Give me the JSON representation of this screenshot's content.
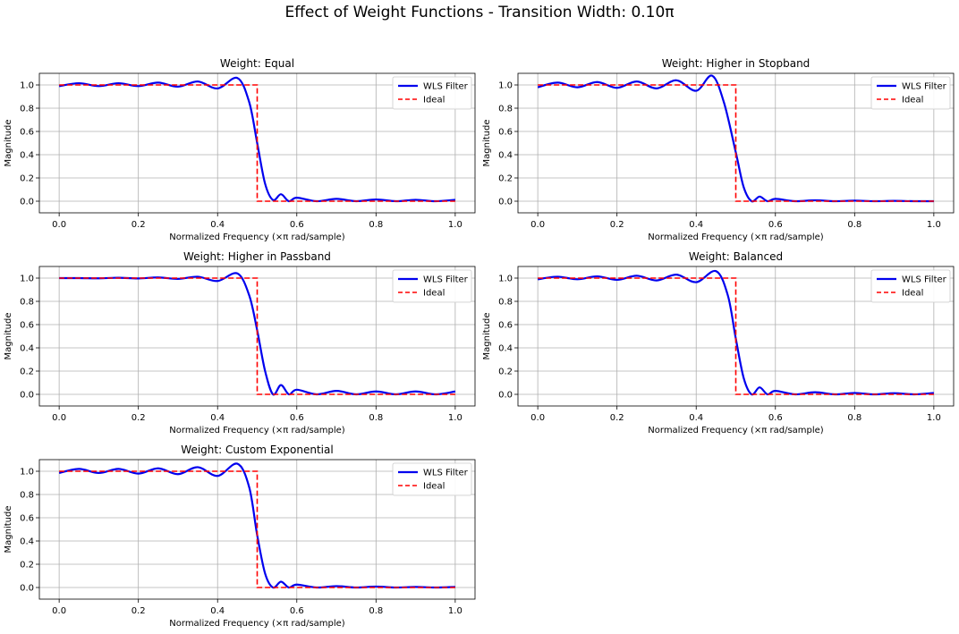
{
  "figure": {
    "suptitle": "Effect of Weight Functions - Transition Width: 0.10π"
  },
  "colors": {
    "wls": "#0000ee",
    "ideal": "#ff0000",
    "grid": "#b0b0b0"
  },
  "chart_data": [
    {
      "type": "line",
      "title": "Weight: Equal",
      "xlabel": "Normalized Frequency (×π rad/sample)",
      "ylabel": "Magnitude",
      "xlim": [
        -0.05,
        1.05
      ],
      "ylim": [
        -0.1,
        1.1
      ],
      "xticks": [
        0.0,
        0.2,
        0.4,
        0.6,
        0.8,
        1.0
      ],
      "yticks": [
        0.0,
        0.2,
        0.4,
        0.6,
        0.8,
        1.0
      ],
      "xtick_labels": [
        "0.0",
        "0.2",
        "0.4",
        "0.6",
        "0.8",
        "1.0"
      ],
      "ytick_labels": [
        "0.0",
        "0.2",
        "0.4",
        "0.6",
        "0.8",
        "1.0"
      ],
      "grid": true,
      "legend": "top-right",
      "series": [
        {
          "name": "WLS Filter",
          "style": "solid",
          "x": [
            0.0,
            0.05,
            0.1,
            0.15,
            0.2,
            0.25,
            0.3,
            0.35,
            0.4,
            0.45,
            0.48,
            0.5,
            0.52,
            0.54,
            0.56,
            0.58,
            0.6,
            0.65,
            0.7,
            0.75,
            0.8,
            0.85,
            0.9,
            0.95,
            1.0
          ],
          "y": [
            0.99,
            1.015,
            0.99,
            1.015,
            0.99,
            1.02,
            0.985,
            1.03,
            0.97,
            1.06,
            0.85,
            0.5,
            0.15,
            0.01,
            0.06,
            0.0,
            0.03,
            0.0,
            0.02,
            0.0,
            0.015,
            0.0,
            0.012,
            0.0,
            0.012
          ]
        },
        {
          "name": "Ideal",
          "style": "dashed",
          "x": [
            0.0,
            0.5,
            0.5,
            1.0
          ],
          "y": [
            1.0,
            1.0,
            0.0,
            0.0
          ]
        }
      ]
    },
    {
      "type": "line",
      "title": "Weight: Higher in Stopband",
      "xlabel": "Normalized Frequency (×π rad/sample)",
      "ylabel": "Magnitude",
      "xlim": [
        -0.05,
        1.05
      ],
      "ylim": [
        -0.1,
        1.1
      ],
      "xticks": [
        0.0,
        0.2,
        0.4,
        0.6,
        0.8,
        1.0
      ],
      "yticks": [
        0.0,
        0.2,
        0.4,
        0.6,
        0.8,
        1.0
      ],
      "xtick_labels": [
        "0.0",
        "0.2",
        "0.4",
        "0.6",
        "0.8",
        "1.0"
      ],
      "ytick_labels": [
        "0.0",
        "0.2",
        "0.4",
        "0.6",
        "0.8",
        "1.0"
      ],
      "grid": true,
      "legend": "top-right",
      "series": [
        {
          "name": "WLS Filter",
          "style": "solid",
          "x": [
            0.0,
            0.05,
            0.1,
            0.15,
            0.2,
            0.25,
            0.3,
            0.35,
            0.4,
            0.44,
            0.47,
            0.5,
            0.52,
            0.54,
            0.56,
            0.58,
            0.6,
            0.65,
            0.7,
            0.75,
            0.8,
            0.85,
            0.9,
            0.95,
            1.0
          ],
          "y": [
            0.98,
            1.02,
            0.98,
            1.025,
            0.975,
            1.03,
            0.97,
            1.04,
            0.95,
            1.08,
            0.85,
            0.42,
            0.12,
            0.0,
            0.04,
            0.0,
            0.02,
            0.0,
            0.008,
            0.0,
            0.005,
            0.0,
            0.003,
            0.0,
            0.0
          ]
        },
        {
          "name": "Ideal",
          "style": "dashed",
          "x": [
            0.0,
            0.5,
            0.5,
            1.0
          ],
          "y": [
            1.0,
            1.0,
            0.0,
            0.0
          ]
        }
      ]
    },
    {
      "type": "line",
      "title": "Weight: Higher in Passband",
      "xlabel": "Normalized Frequency (×π rad/sample)",
      "ylabel": "Magnitude",
      "xlim": [
        -0.05,
        1.05
      ],
      "ylim": [
        -0.1,
        1.1
      ],
      "xticks": [
        0.0,
        0.2,
        0.4,
        0.6,
        0.8,
        1.0
      ],
      "yticks": [
        0.0,
        0.2,
        0.4,
        0.6,
        0.8,
        1.0
      ],
      "xtick_labels": [
        "0.0",
        "0.2",
        "0.4",
        "0.6",
        "0.8",
        "1.0"
      ],
      "ytick_labels": [
        "0.0",
        "0.2",
        "0.4",
        "0.6",
        "0.8",
        "1.0"
      ],
      "grid": true,
      "legend": "top-right",
      "series": [
        {
          "name": "WLS Filter",
          "style": "solid",
          "x": [
            0.0,
            0.05,
            0.1,
            0.15,
            0.2,
            0.25,
            0.3,
            0.35,
            0.4,
            0.45,
            0.48,
            0.5,
            0.52,
            0.54,
            0.56,
            0.58,
            0.6,
            0.65,
            0.7,
            0.75,
            0.8,
            0.85,
            0.9,
            0.95,
            1.0
          ],
          "y": [
            1.0,
            1.0,
            0.998,
            1.003,
            0.997,
            1.006,
            0.993,
            1.012,
            0.975,
            1.04,
            0.85,
            0.55,
            0.2,
            0.0,
            0.08,
            0.0,
            0.04,
            0.0,
            0.03,
            0.0,
            0.025,
            0.0,
            0.025,
            0.0,
            0.025
          ]
        },
        {
          "name": "Ideal",
          "style": "dashed",
          "x": [
            0.0,
            0.5,
            0.5,
            1.0
          ],
          "y": [
            1.0,
            1.0,
            0.0,
            0.0
          ]
        }
      ]
    },
    {
      "type": "line",
      "title": "Weight: Balanced",
      "xlabel": "Normalized Frequency (×π rad/sample)",
      "ylabel": "Magnitude",
      "xlim": [
        -0.05,
        1.05
      ],
      "ylim": [
        -0.1,
        1.1
      ],
      "xticks": [
        0.0,
        0.2,
        0.4,
        0.6,
        0.8,
        1.0
      ],
      "yticks": [
        0.0,
        0.2,
        0.4,
        0.6,
        0.8,
        1.0
      ],
      "xtick_labels": [
        "0.0",
        "0.2",
        "0.4",
        "0.6",
        "0.8",
        "1.0"
      ],
      "ytick_labels": [
        "0.0",
        "0.2",
        "0.4",
        "0.6",
        "0.8",
        "1.0"
      ],
      "grid": true,
      "legend": "top-right",
      "series": [
        {
          "name": "WLS Filter",
          "style": "solid",
          "x": [
            0.0,
            0.05,
            0.1,
            0.15,
            0.2,
            0.25,
            0.3,
            0.35,
            0.4,
            0.45,
            0.48,
            0.5,
            0.52,
            0.54,
            0.56,
            0.58,
            0.6,
            0.65,
            0.7,
            0.75,
            0.8,
            0.85,
            0.9,
            0.95,
            1.0
          ],
          "y": [
            0.99,
            1.012,
            0.99,
            1.015,
            0.985,
            1.02,
            0.98,
            1.03,
            0.965,
            1.06,
            0.85,
            0.48,
            0.14,
            0.0,
            0.06,
            0.0,
            0.03,
            0.0,
            0.018,
            0.0,
            0.012,
            0.0,
            0.01,
            0.0,
            0.012
          ]
        },
        {
          "name": "Ideal",
          "style": "dashed",
          "x": [
            0.0,
            0.5,
            0.5,
            1.0
          ],
          "y": [
            1.0,
            1.0,
            0.0,
            0.0
          ]
        }
      ]
    },
    {
      "type": "line",
      "title": "Weight: Custom Exponential",
      "xlabel": "Normalized Frequency (×π rad/sample)",
      "ylabel": "Magnitude",
      "xlim": [
        -0.05,
        1.05
      ],
      "ylim": [
        -0.1,
        1.1
      ],
      "xticks": [
        0.0,
        0.2,
        0.4,
        0.6,
        0.8,
        1.0
      ],
      "yticks": [
        0.0,
        0.2,
        0.4,
        0.6,
        0.8,
        1.0
      ],
      "xtick_labels": [
        "0.0",
        "0.2",
        "0.4",
        "0.6",
        "0.8",
        "1.0"
      ],
      "ytick_labels": [
        "0.0",
        "0.2",
        "0.4",
        "0.6",
        "0.8",
        "1.0"
      ],
      "grid": true,
      "legend": "top-right",
      "series": [
        {
          "name": "WLS Filter",
          "style": "solid",
          "x": [
            0.0,
            0.05,
            0.1,
            0.15,
            0.2,
            0.25,
            0.3,
            0.35,
            0.4,
            0.45,
            0.48,
            0.5,
            0.52,
            0.54,
            0.56,
            0.58,
            0.6,
            0.65,
            0.7,
            0.75,
            0.8,
            0.85,
            0.9,
            0.95,
            1.0
          ],
          "y": [
            0.985,
            1.02,
            0.985,
            1.02,
            0.98,
            1.025,
            0.975,
            1.035,
            0.96,
            1.065,
            0.86,
            0.45,
            0.12,
            0.0,
            0.05,
            0.0,
            0.025,
            0.0,
            0.012,
            0.0,
            0.008,
            0.0,
            0.005,
            0.0,
            0.005
          ]
        },
        {
          "name": "Ideal",
          "style": "dashed",
          "x": [
            0.0,
            0.5,
            0.5,
            1.0
          ],
          "y": [
            1.0,
            1.0,
            0.0,
            0.0
          ]
        }
      ]
    }
  ]
}
